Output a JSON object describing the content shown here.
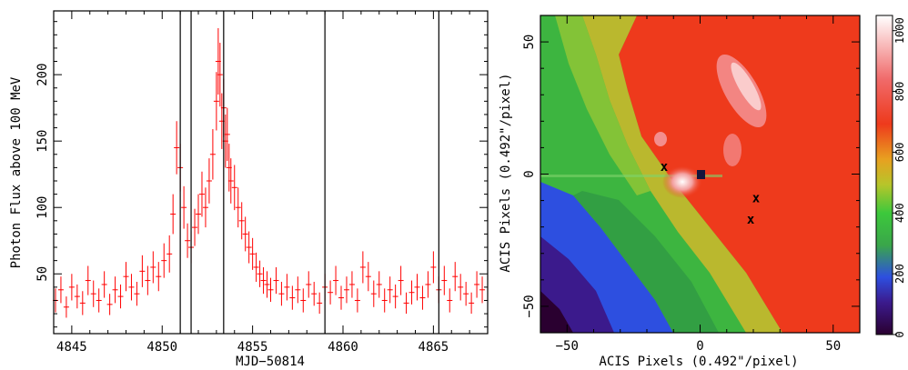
{
  "chart_data": [
    {
      "type": "scatter",
      "panel": "light-curve",
      "xlabel": "MJD−50814",
      "ylabel": "Photon Flux above 100 MeV",
      "xlim": [
        4844,
        4868
      ],
      "ylim": [
        5,
        248
      ],
      "xticks": [
        4845,
        4850,
        4855,
        4860,
        4865
      ],
      "yticks": [
        50,
        100,
        150,
        200
      ],
      "grid": false,
      "marker_color": "#ff0000",
      "vertical_lines": [
        4851.0,
        4851.6,
        4853.4,
        4859.0,
        4865.3
      ],
      "points": {
        "x": [
          4844.1,
          4844.4,
          4844.7,
          4845.0,
          4845.3,
          4845.6,
          4845.9,
          4846.2,
          4846.5,
          4846.8,
          4847.1,
          4847.4,
          4847.7,
          4848.0,
          4848.3,
          4848.6,
          4848.9,
          4849.2,
          4849.5,
          4849.8,
          4850.1,
          4850.4,
          4850.6,
          4850.8,
          4851.0,
          4851.2,
          4851.4,
          4851.6,
          4851.8,
          4852.0,
          4852.2,
          4852.4,
          4852.6,
          4852.8,
          4853.0,
          4853.1,
          4853.2,
          4853.3,
          4853.4,
          4853.5,
          4853.6,
          4853.7,
          4853.8,
          4854.0,
          4854.2,
          4854.4,
          4854.6,
          4854.8,
          4855.0,
          4855.2,
          4855.4,
          4855.6,
          4855.8,
          4856.0,
          4856.3,
          4856.6,
          4856.9,
          4857.2,
          4857.5,
          4857.8,
          4858.1,
          4858.4,
          4858.7,
          4859.0,
          4859.3,
          4859.6,
          4859.9,
          4860.2,
          4860.5,
          4860.8,
          4861.1,
          4861.4,
          4861.7,
          4862.0,
          4862.3,
          4862.6,
          4862.9,
          4863.2,
          4863.5,
          4863.8,
          4864.1,
          4864.4,
          4864.7,
          4865.0,
          4865.3,
          4865.6,
          4865.9,
          4866.2,
          4866.5,
          4866.8,
          4867.1,
          4867.4,
          4867.7
        ],
        "y": [
          30,
          38,
          25,
          40,
          33,
          28,
          45,
          35,
          30,
          42,
          27,
          38,
          33,
          48,
          40,
          35,
          52,
          45,
          55,
          48,
          60,
          65,
          95,
          145,
          130,
          100,
          75,
          70,
          85,
          95,
          110,
          100,
          120,
          140,
          180,
          210,
          200,
          165,
          175,
          150,
          155,
          130,
          120,
          115,
          100,
          90,
          80,
          70,
          65,
          55,
          50,
          45,
          42,
          38,
          45,
          35,
          40,
          32,
          38,
          30,
          42,
          35,
          28,
          40,
          36,
          45,
          32,
          38,
          42,
          30,
          55,
          48,
          35,
          42,
          30,
          38,
          33,
          45,
          28,
          36,
          40,
          32,
          42,
          55,
          38,
          45,
          30,
          48,
          40,
          35,
          28,
          42,
          38
        ],
        "yerr": [
          9,
          10,
          8,
          10,
          9,
          9,
          11,
          10,
          9,
          10,
          8,
          10,
          9,
          11,
          10,
          9,
          12,
          11,
          12,
          11,
          13,
          14,
          15,
          20,
          18,
          16,
          13,
          12,
          14,
          15,
          17,
          15,
          17,
          19,
          22,
          25,
          24,
          21,
          22,
          20,
          20,
          18,
          17,
          17,
          15,
          14,
          13,
          12,
          12,
          11,
          10,
          10,
          10,
          9,
          10,
          9,
          10,
          9,
          10,
          9,
          10,
          9,
          8,
          10,
          9,
          11,
          9,
          10,
          10,
          9,
          12,
          11,
          10,
          10,
          9,
          10,
          9,
          11,
          8,
          9,
          10,
          9,
          10,
          12,
          10,
          11,
          9,
          11,
          10,
          9,
          8,
          10,
          10
        ]
      }
    },
    {
      "type": "heatmap",
      "panel": "acis-image",
      "xlabel": "ACIS Pixels (0.492\"/pixel)",
      "ylabel": "ACIS Pixels (0.492\"/pixel)",
      "xlim": [
        -60,
        60
      ],
      "ylim": [
        -60,
        60
      ],
      "xticks": [
        -50,
        0,
        50
      ],
      "yticks": [
        -50,
        0,
        50
      ],
      "markers": [
        {
          "label": "x",
          "x": -13.5,
          "y": 3
        },
        {
          "label": "x",
          "x": 21,
          "y": -9
        },
        {
          "label": "x",
          "x": 19,
          "y": -17
        }
      ],
      "colorbar": {
        "range": [
          0,
          1050
        ],
        "ticks": [
          0,
          200,
          400,
          600,
          800,
          1000
        ],
        "stops": [
          "#2a0030",
          "#3b1a8c",
          "#2d4fe0",
          "#3aa64a",
          "#3cc83c",
          "#b7c52a",
          "#e8a020",
          "#ee3a1c",
          "#f06a6a",
          "#ffffff"
        ]
      }
    }
  ]
}
